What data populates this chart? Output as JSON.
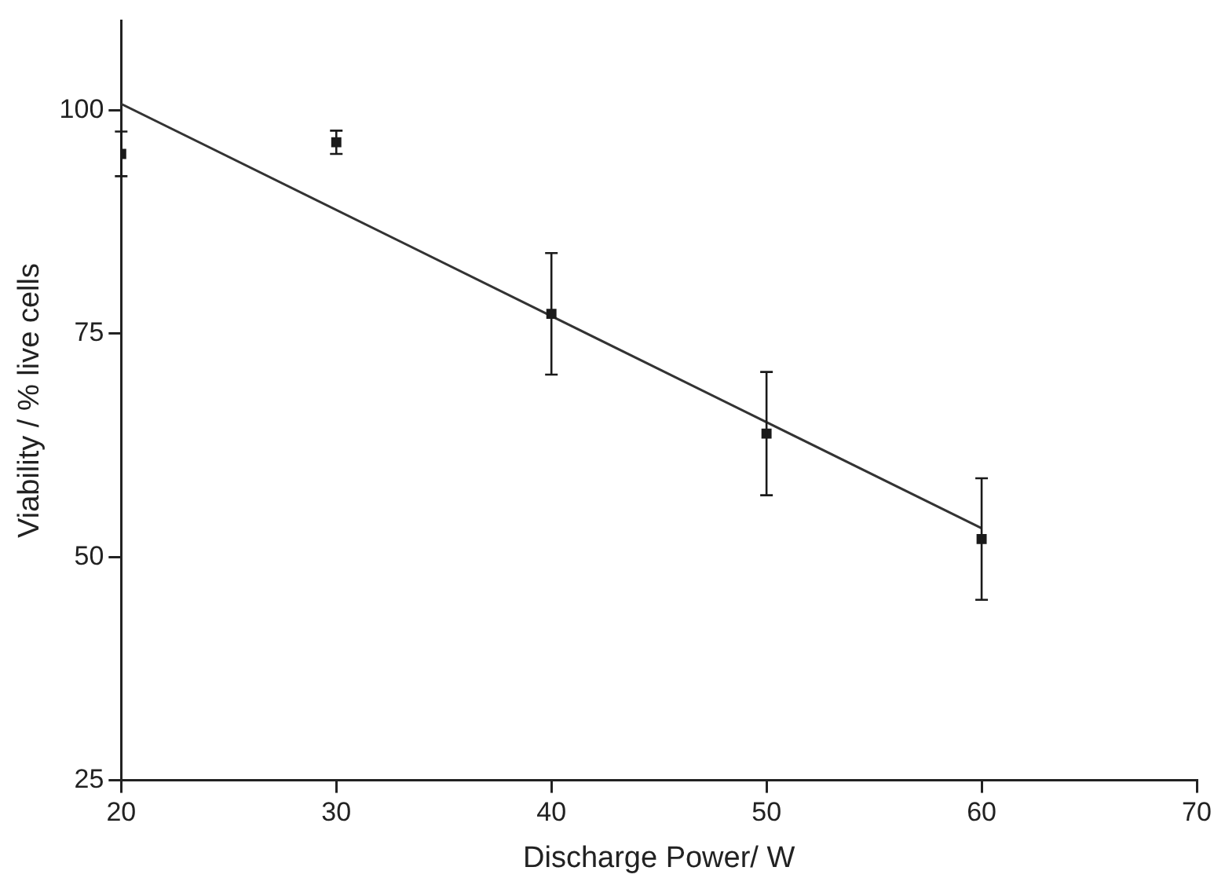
{
  "chart_data": {
    "type": "scatter",
    "xlabel": "Discharge Power/ W",
    "ylabel": "Viability / % live cells",
    "xlim": [
      20,
      70
    ],
    "xticks": [
      20,
      30,
      40,
      50,
      60,
      70
    ],
    "ylim": [
      25,
      110
    ],
    "yticks": [
      25,
      50,
      75,
      100
    ],
    "grid": false,
    "legend": false,
    "marker": "square",
    "series": [
      {
        "color": "#1a1a1a",
        "x": [
          20,
          30,
          40,
          50,
          60
        ],
        "values": [
          95.1,
          96.4,
          77.2,
          63.8,
          52.0
        ],
        "errors": [
          2.5,
          1.3,
          6.8,
          6.9,
          6.8
        ]
      },
      {
        "type": "line",
        "color": "#333333",
        "x": [
          20,
          60
        ],
        "values": [
          100.7,
          53.2
        ],
        "line_style": "solid",
        "marker": "none"
      }
    ]
  }
}
